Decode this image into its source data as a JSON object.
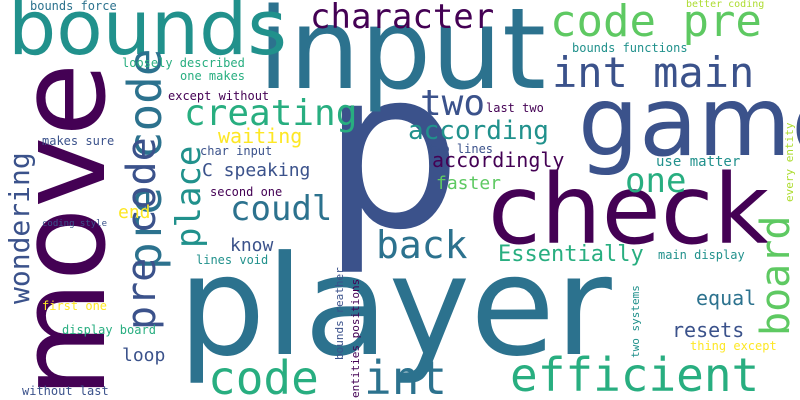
{
  "palette": {
    "dark_purple": "#440154",
    "indigo": "#3b528b",
    "teal_blue": "#2c728e",
    "teal": "#21918c",
    "green_teal": "#28ae80",
    "green": "#5ec962",
    "lime": "#addc30",
    "yellow": "#fde725",
    "background": "#ffffff"
  },
  "words": {
    "p": "p",
    "player": "player",
    "input": "input",
    "move": "move",
    "check": "check",
    "game": "game",
    "bounds": "bounds",
    "code_pre_top": "code pre",
    "int_main": "int main",
    "character": "character",
    "pre_code_vertical": "pre code",
    "efficient": "efficient",
    "code_bottom": "code",
    "int_bottom": "int",
    "board": "board",
    "creating": "creating",
    "back": "back",
    "coudl": "coudl",
    "one": "one",
    "according": "according",
    "two": "two",
    "place": "place",
    "wondering": "wondering",
    "pre_code_left": "pre code",
    "essentially": "Essentially",
    "accordingly": "accordingly",
    "resets": "resets",
    "equal": "equal",
    "waiting": "waiting",
    "c_speaking": "C speaking",
    "faster": "faster",
    "know": "know",
    "loop": "loop",
    "end": "end",
    "use_matter": "use matter",
    "bounds_force": "bounds force",
    "better_coding": "better coding",
    "bounds_functions": "bounds functions",
    "loosely_described": "loosely described",
    "one_makes": "one makes",
    "except_without": "except without",
    "last_two": "last two",
    "makes_sure": "makes sure",
    "char_input": "char input",
    "two_lines": "two lines",
    "second_one": "second one",
    "coding_style": "coding style",
    "lines_void": "lines void",
    "main_display": "main display",
    "bounds_reather": "bounds reather",
    "entities_positions": "entities positions",
    "first_one": "first one",
    "display_board": "display board",
    "two_systems": "two systems",
    "thing_except": "thing except",
    "without_last": "without last",
    "every_entity": "every entity"
  }
}
